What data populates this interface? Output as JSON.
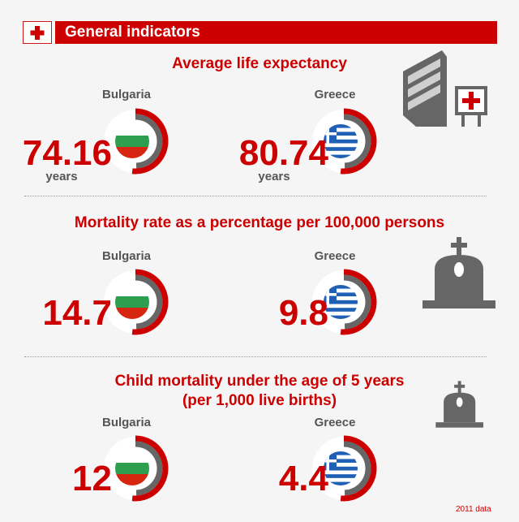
{
  "header": {
    "title": "General indicators",
    "icon": "red-cross-icon"
  },
  "colors": {
    "accent": "#cc0000",
    "gray": "#555555",
    "bg": "#f5f5f5"
  },
  "sections": [
    {
      "title": "Average life expectancy",
      "unit": "years",
      "icon": "hospital-icon"
    },
    {
      "title": "Mortality rate as a percentage per 100,000 persons",
      "unit": "",
      "icon": "gravestone-icon"
    },
    {
      "title_line1": "Child mortality under the age of 5 years",
      "title_line2": "(per 1,000 live births)",
      "unit": "",
      "icon": "gravestone-icon"
    }
  ],
  "footnote": "2011 data",
  "chart_data": [
    {
      "type": "gauge",
      "title": "Average life expectancy",
      "categories": [
        "Bulgaria",
        "Greece"
      ],
      "values": [
        74.16,
        80.74
      ],
      "labels": [
        "74.16",
        "80.74"
      ],
      "unit": "years"
    },
    {
      "type": "gauge",
      "title": "Mortality rate as a percentage per 100,000 persons",
      "categories": [
        "Bulgaria",
        "Greece"
      ],
      "values": [
        14.7,
        9.8
      ],
      "labels": [
        "14.7",
        "9.8"
      ]
    },
    {
      "type": "gauge",
      "title": "Child mortality under the age of 5 years (per 1,000 live births)",
      "categories": [
        "Bulgaria",
        "Greece"
      ],
      "values": [
        12,
        4.4
      ],
      "labels": [
        "12",
        "4.4"
      ]
    }
  ]
}
